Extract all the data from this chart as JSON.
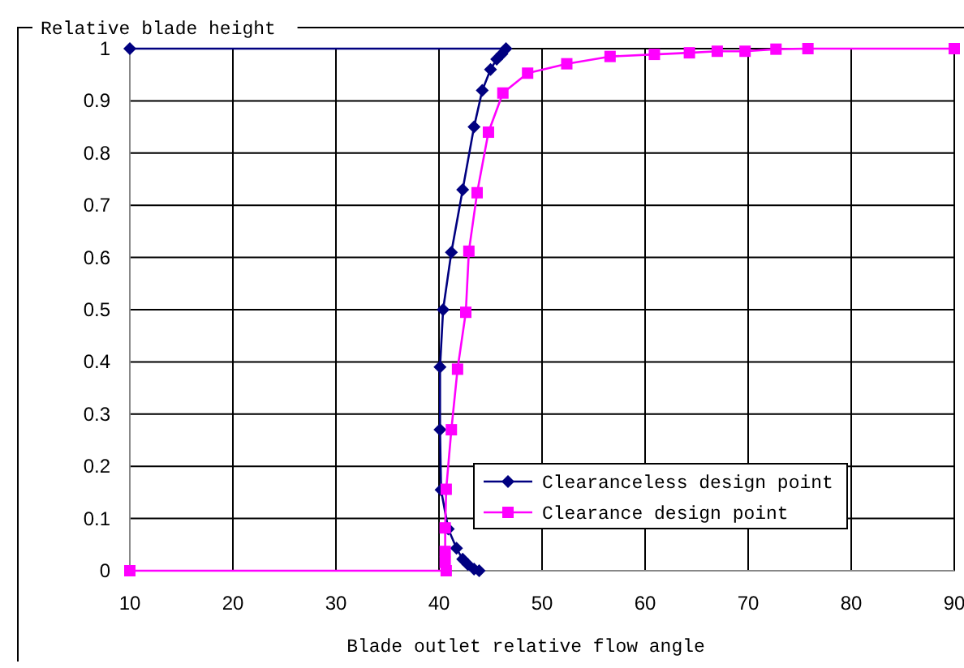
{
  "chart_data": {
    "type": "line",
    "ylabel": "Relative blade height",
    "xlabel": "Blade outlet relative flow angle",
    "xlim": [
      10,
      90
    ],
    "xticks": [
      10,
      20,
      30,
      40,
      50,
      60,
      70,
      80,
      90
    ],
    "ylim": [
      0,
      1
    ],
    "yticks": [
      0,
      0.1,
      0.2,
      0.3,
      0.4,
      0.5,
      0.6,
      0.7,
      0.8,
      0.9,
      1
    ],
    "grid": true,
    "legend": "bottom right",
    "series": [
      {
        "name": "Clearanceless design point",
        "color": "#000080",
        "marker": "diamond",
        "x": [
          10,
          46.5,
          46.1,
          45.6,
          45.0,
          44.2,
          43.4,
          42.3,
          41.2,
          40.4,
          40.1,
          40.1,
          40.2,
          40.9,
          41.7,
          42.3,
          42.8,
          43.4,
          43.9
        ],
        "values": [
          1,
          1,
          0.99,
          0.98,
          0.96,
          0.92,
          0.85,
          0.73,
          0.61,
          0.5,
          0.39,
          0.27,
          0.155,
          0.08,
          0.043,
          0.022,
          0.012,
          0.003,
          0
        ]
      },
      {
        "name": "Clearance design point",
        "color": "#ff00ff",
        "marker": "square",
        "x": [
          10,
          40.7,
          40.6,
          40.6,
          40.6,
          40.7,
          41.2,
          41.8,
          42.6,
          42.9,
          43.7,
          44.8,
          46.2,
          48.6,
          52.4,
          56.6,
          60.9,
          64.3,
          67.0,
          69.7,
          72.7,
          75.8,
          90
        ],
        "values": [
          0,
          0,
          0.016,
          0.037,
          0.082,
          0.156,
          0.27,
          0.386,
          0.495,
          0.612,
          0.724,
          0.84,
          0.915,
          0.953,
          0.971,
          0.985,
          0.989,
          0.992,
          0.995,
          0.995,
          0.999,
          1,
          1
        ]
      }
    ]
  }
}
